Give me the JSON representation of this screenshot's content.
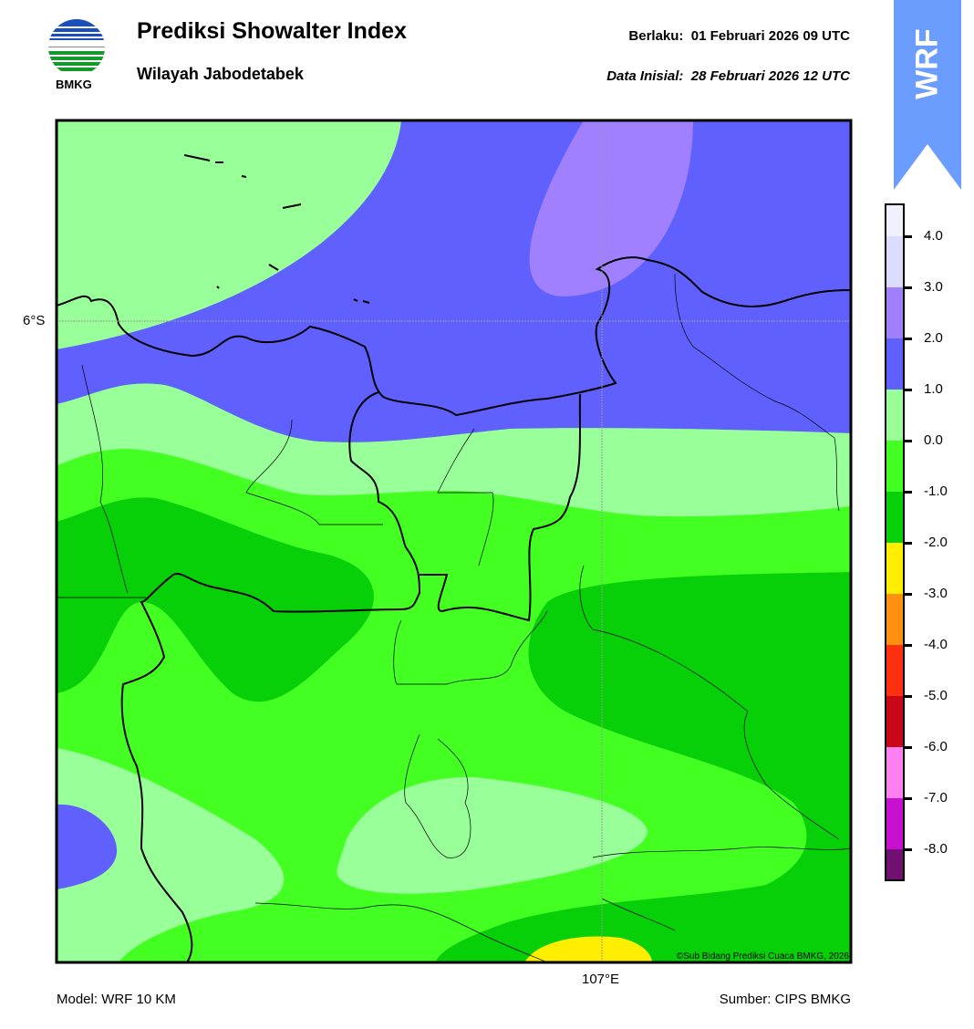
{
  "header": {
    "logo_text": "BMKG",
    "title": "Prediksi Showalter Index",
    "subtitle": "Wilayah Jabodetabek",
    "valid_time": "Berlaku:  01 Februari 2026 09 UTC",
    "initial_data": "Data Inisial:  28 Februari 2026 12 UTC",
    "badge": "WRF"
  },
  "map": {
    "lat_label": "6°S",
    "lon_label": "107°E",
    "copyright": "©Sub Bidang Prediksi Cuaca BMKG, 2026",
    "palette": {
      "above_4": "#f0f0ff",
      "3_to_4": "#dcdcff",
      "2_to_3": "#a080ff",
      "1_to_2": "#6060ff",
      "0_to_1": "#99ff99",
      "-1_to_0": "#44ff22",
      "-2_to_-1": "#08d008",
      "-3_to_-2": "#ffee00",
      "-4_to_-3": "#ff9010",
      "-5_to_-4": "#ff3010",
      "-6_to_-5": "#c80818",
      "-7_to_-6": "#ff80f0",
      "-8_to_-7": "#c810d0",
      "below_-8": "#701070"
    }
  },
  "colorbar": {
    "ticks": [
      "4.0",
      "3.0",
      "2.0",
      "1.0",
      "0.0",
      "-1.0",
      "-2.0",
      "-3.0",
      "-4.0",
      "-5.0",
      "-6.0",
      "-7.0",
      "-8.0"
    ],
    "colors": [
      "#f0f0ff",
      "#dcdcff",
      "#a080ff",
      "#6060ff",
      "#99ff99",
      "#44ff22",
      "#08d008",
      "#ffee00",
      "#ff9010",
      "#ff3010",
      "#c80818",
      "#ff80f0",
      "#c810d0",
      "#701070"
    ]
  },
  "footer": {
    "model": "Model: WRF 10 KM",
    "source": "Sumber: CIPS BMKG"
  }
}
